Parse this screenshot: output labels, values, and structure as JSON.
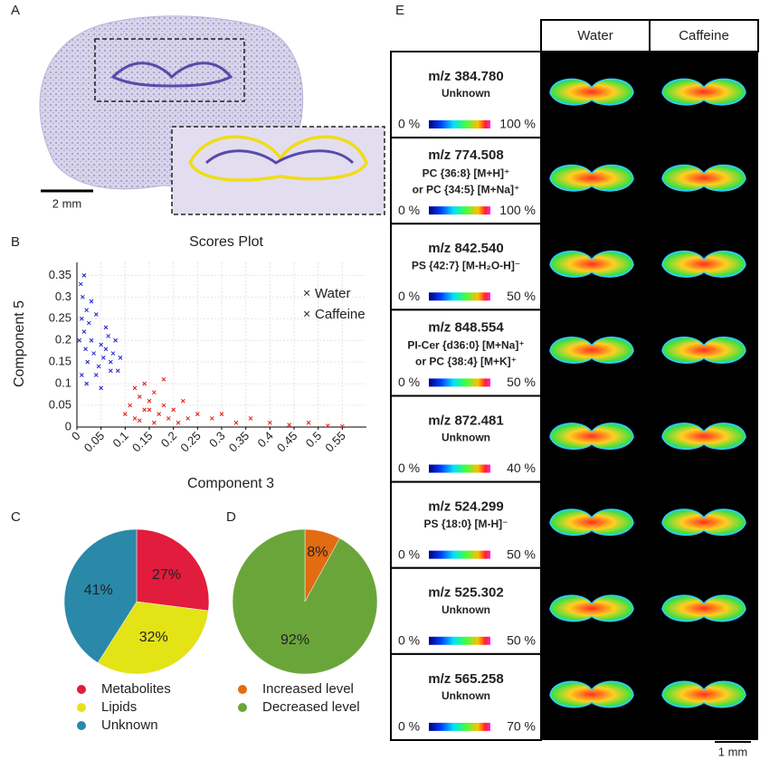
{
  "panel_labels": [
    "A",
    "B",
    "C",
    "D",
    "E"
  ],
  "panel_a": {
    "scale": "2 mm"
  },
  "chart_data": [
    {
      "type": "scatter",
      "title": "Scores Plot",
      "x_label": "Component 3",
      "y_label": "Component 5",
      "xlim": [
        0,
        0.6
      ],
      "ylim": [
        0,
        0.38
      ],
      "xticks": [
        0,
        0.05,
        0.1,
        0.15,
        0.2,
        0.25,
        0.3,
        0.35,
        0.4,
        0.45,
        0.5,
        0.55
      ],
      "yticks": [
        0,
        0.05,
        0.1,
        0.15,
        0.2,
        0.25,
        0.3,
        0.35
      ],
      "grid": true,
      "series": [
        {
          "name": "Water",
          "color": "#1f1fd0",
          "x": [
            0.005,
            0.01,
            0.012,
            0.015,
            0.018,
            0.02,
            0.022,
            0.025,
            0.008,
            0.03,
            0.035,
            0.04,
            0.045,
            0.05,
            0.055,
            0.06,
            0.065,
            0.07,
            0.075,
            0.08,
            0.085,
            0.09,
            0.01,
            0.02,
            0.03,
            0.015,
            0.06,
            0.07,
            0.05,
            0.04
          ],
          "y": [
            0.2,
            0.25,
            0.3,
            0.22,
            0.18,
            0.27,
            0.15,
            0.24,
            0.33,
            0.2,
            0.17,
            0.26,
            0.14,
            0.19,
            0.16,
            0.18,
            0.21,
            0.15,
            0.17,
            0.2,
            0.13,
            0.16,
            0.12,
            0.1,
            0.29,
            0.35,
            0.23,
            0.13,
            0.09,
            0.12
          ]
        },
        {
          "name": "Caffeine",
          "color": "#e01818",
          "x": [
            0.1,
            0.11,
            0.12,
            0.13,
            0.14,
            0.15,
            0.16,
            0.17,
            0.18,
            0.19,
            0.2,
            0.21,
            0.22,
            0.23,
            0.25,
            0.12,
            0.14,
            0.16,
            0.18,
            0.15,
            0.28,
            0.3,
            0.33,
            0.36,
            0.4,
            0.44,
            0.48,
            0.52,
            0.55,
            0.13
          ],
          "y": [
            0.03,
            0.05,
            0.02,
            0.07,
            0.04,
            0.06,
            0.08,
            0.03,
            0.05,
            0.02,
            0.04,
            0.01,
            0.06,
            0.02,
            0.03,
            0.09,
            0.1,
            0.01,
            0.11,
            0.04,
            0.02,
            0.03,
            0.01,
            0.02,
            0.01,
            0.005,
            0.01,
            0.003,
            0.002,
            0.015
          ]
        }
      ]
    },
    {
      "type": "pie",
      "categories": [
        "Metabolites",
        "Lipids",
        "Unknown"
      ],
      "values": [
        27,
        32,
        41
      ],
      "value_labels": [
        "27%",
        "32%",
        "41%"
      ],
      "colors": [
        "#e21c3c",
        "#e3e316",
        "#2a88a8"
      ]
    },
    {
      "type": "pie",
      "categories": [
        "Increased level",
        "Decreased level"
      ],
      "values": [
        8,
        92
      ],
      "value_labels": [
        "8%",
        "92%"
      ],
      "colors": [
        "#e36b12",
        "#6aa53a"
      ]
    }
  ],
  "panel_e": {
    "columns": [
      "Water",
      "Caffeine"
    ],
    "scale": "1 mm",
    "rows": [
      {
        "mz": "m/z 384.780",
        "annotation": [
          "Unknown"
        ],
        "min": "0 %",
        "max": "100 %",
        "color": "#5b9a2a"
      },
      {
        "mz": "m/z 774.508",
        "annotation": [
          "PC {36:8} [M+H]⁺",
          "or PC {34:5} [M+Na]⁺"
        ],
        "min": "0 %",
        "max": "100 %",
        "color": "#5b9a2a"
      },
      {
        "mz": "m/z 842.540",
        "annotation": [
          "PS {42:7} [M-H₂O-H]⁻"
        ],
        "min": "0 %",
        "max": "50 %",
        "color": "#5b9a2a"
      },
      {
        "mz": "m/z 848.554",
        "annotation": [
          "PI-Cer {d36:0} [M+Na]⁺",
          "or PC {38:4} [M+K]⁺"
        ],
        "min": "0 %",
        "max": "50 %",
        "color": "#5b9a2a"
      },
      {
        "mz": "m/z 872.481",
        "annotation": [
          "Unknown"
        ],
        "min": "0 %",
        "max": "40 %",
        "color": "#5b9a2a"
      },
      {
        "mz": "m/z 524.299",
        "annotation": [
          "PS {18:0} [M-H]⁻"
        ],
        "min": "0 %",
        "max": "50 %",
        "color": "#e4681e"
      },
      {
        "mz": "m/z 525.302",
        "annotation": [
          "Unknown"
        ],
        "min": "0 %",
        "max": "50 %",
        "color": "#e4681e"
      },
      {
        "mz": "m/z 565.258",
        "annotation": [
          "Unknown"
        ],
        "min": "0 %",
        "max": "70 %",
        "color": "#e4681e"
      }
    ]
  }
}
